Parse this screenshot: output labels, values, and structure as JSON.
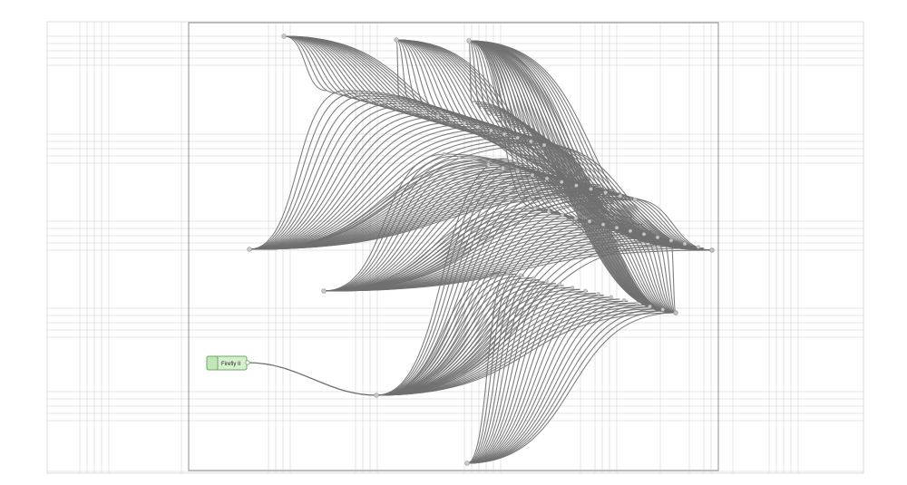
{
  "canvas": {
    "background": "#ffffff",
    "grid_color": "#dcdcdc",
    "frame_color": "#8c8c8c",
    "wire_color": "#707070",
    "port_color": "#c8c8c8"
  },
  "nodes": [
    {
      "id": "firefly",
      "label": "Firefly II",
      "fill": "#d6f0cf",
      "stroke": "#6ea865"
    }
  ],
  "wire_bundles": 15
}
